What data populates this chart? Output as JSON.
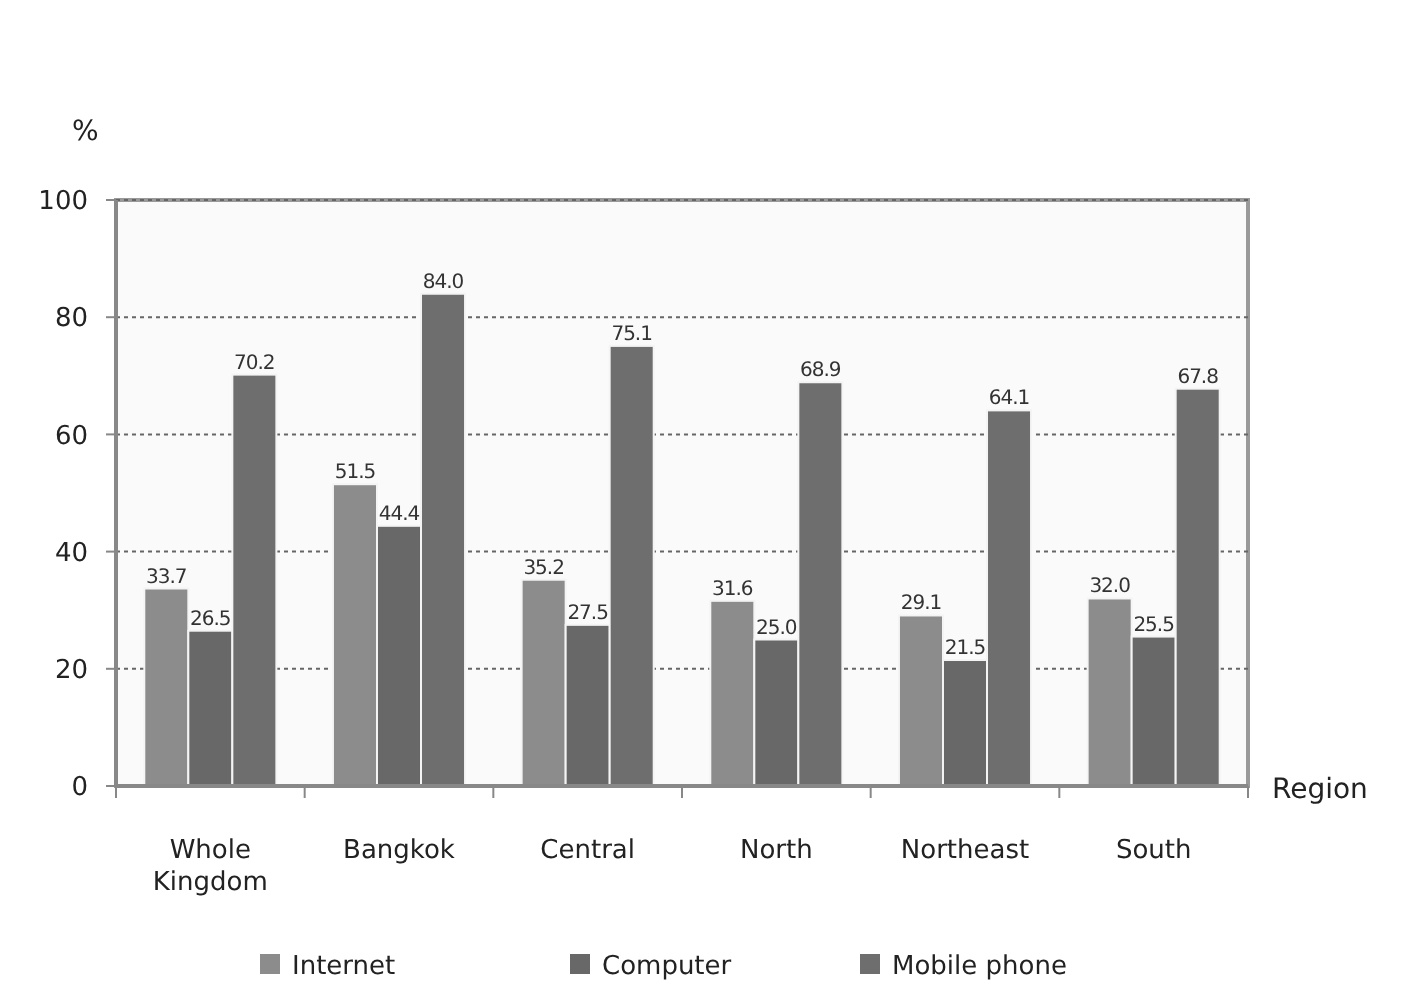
{
  "chart_data": {
    "type": "bar",
    "ylabel": "%",
    "xlabel": "Region",
    "categories": [
      "Whole Kingdom",
      "Bangkok",
      "Central",
      "North",
      "Northeast",
      "South"
    ],
    "series": [
      {
        "name": "Internet",
        "color": "#8c8c8c",
        "values": [
          33.7,
          51.5,
          35.2,
          31.6,
          29.1,
          32.0
        ],
        "value_labels": [
          "33.7",
          "51.5",
          "35.2",
          "31.6",
          "29.1",
          "32.0"
        ]
      },
      {
        "name": "Computer",
        "color": "#686868",
        "values": [
          26.5,
          44.4,
          27.5,
          25.0,
          21.5,
          25.5
        ],
        "value_labels": [
          "26.5",
          "44.4",
          "27.5",
          "25.0",
          "21.5",
          "25.5"
        ]
      },
      {
        "name": "Mobile phone",
        "color": "#6e6e6e",
        "values": [
          70.2,
          84.0,
          75.1,
          68.9,
          64.1,
          67.8
        ],
        "value_labels": [
          "70.2",
          "84.0",
          "75.1",
          "68.9",
          "64.1",
          "67.8"
        ]
      }
    ],
    "ylim": [
      0,
      100
    ],
    "yticks": [
      0,
      20,
      40,
      60,
      80,
      100
    ],
    "grid": "y",
    "legend": "bottom"
  }
}
